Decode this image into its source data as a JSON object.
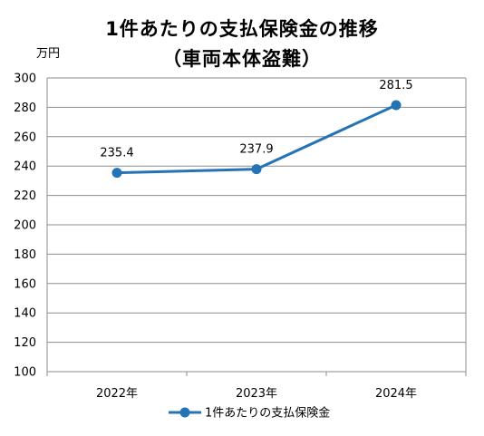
{
  "chart_data": {
    "type": "line",
    "title": "1件あたりの支払保険金の推移",
    "subtitle": "（車両本体盗難）",
    "ylabel": "万円",
    "categories": [
      "2022年",
      "2023年",
      "2024年"
    ],
    "series": [
      {
        "name": "1件あたりの支払保険金",
        "values": [
          235.4,
          237.9,
          281.5
        ]
      }
    ],
    "data_labels": [
      "235.4",
      "237.9",
      "281.5"
    ],
    "yticks": [
      100,
      120,
      140,
      160,
      180,
      200,
      220,
      240,
      260,
      280,
      300
    ],
    "ylim": [
      100,
      300
    ],
    "grid": true,
    "legend": "bottom",
    "line_color": "#2474b5"
  }
}
